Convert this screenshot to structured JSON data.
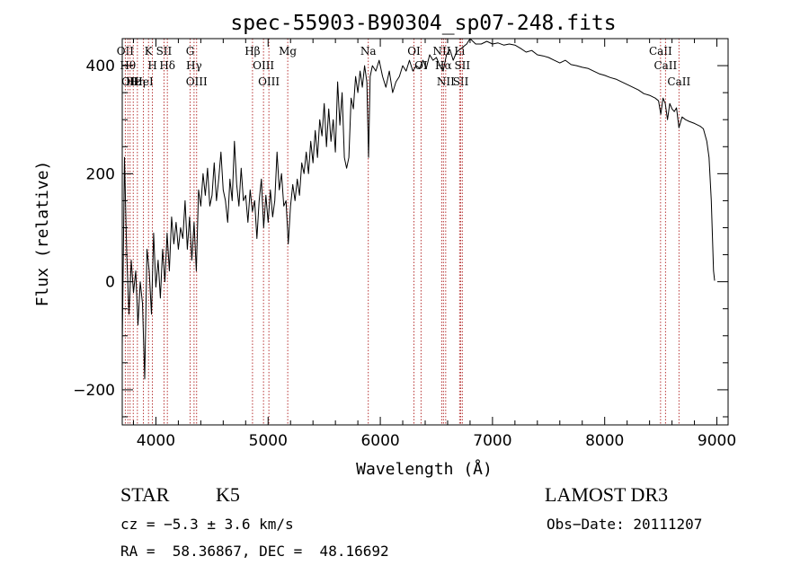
{
  "chart_data": {
    "type": "line",
    "title": "spec-55903-B90304_sp07-248.fits",
    "xlabel": "Wavelength (Å)",
    "ylabel": "Flux (relative)",
    "xlim": [
      3700,
      9100
    ],
    "ylim": [
      -265,
      450
    ],
    "x_ticks": [
      4000,
      5000,
      6000,
      7000,
      8000,
      9000
    ],
    "x_tick_labels": [
      "4000",
      "5000",
      "6000",
      "7000",
      "8000",
      "9000"
    ],
    "y_ticks": [
      -200,
      0,
      200,
      400
    ],
    "y_tick_labels": [
      "−200",
      "0",
      "200",
      "400"
    ],
    "series": [
      {
        "name": "flux",
        "color": "#000000",
        "points": [
          [
            3700,
            -120
          ],
          [
            3720,
            230
          ],
          [
            3740,
            50
          ],
          [
            3760,
            -60
          ],
          [
            3780,
            40
          ],
          [
            3800,
            -20
          ],
          [
            3820,
            20
          ],
          [
            3840,
            -80
          ],
          [
            3860,
            0
          ],
          [
            3880,
            -40
          ],
          [
            3900,
            -180
          ],
          [
            3920,
            60
          ],
          [
            3940,
            20
          ],
          [
            3960,
            -60
          ],
          [
            3980,
            90
          ],
          [
            4000,
            -10
          ],
          [
            4020,
            40
          ],
          [
            4040,
            -30
          ],
          [
            4060,
            60
          ],
          [
            4080,
            0
          ],
          [
            4100,
            90
          ],
          [
            4120,
            20
          ],
          [
            4140,
            120
          ],
          [
            4160,
            70
          ],
          [
            4180,
            110
          ],
          [
            4200,
            60
          ],
          [
            4220,
            100
          ],
          [
            4240,
            80
          ],
          [
            4260,
            150
          ],
          [
            4280,
            60
          ],
          [
            4300,
            120
          ],
          [
            4320,
            40
          ],
          [
            4340,
            110
          ],
          [
            4360,
            20
          ],
          [
            4380,
            170
          ],
          [
            4400,
            140
          ],
          [
            4420,
            200
          ],
          [
            4440,
            160
          ],
          [
            4460,
            210
          ],
          [
            4480,
            140
          ],
          [
            4500,
            160
          ],
          [
            4520,
            220
          ],
          [
            4540,
            150
          ],
          [
            4560,
            190
          ],
          [
            4580,
            240
          ],
          [
            4600,
            170
          ],
          [
            4620,
            150
          ],
          [
            4640,
            110
          ],
          [
            4660,
            190
          ],
          [
            4680,
            150
          ],
          [
            4700,
            260
          ],
          [
            4720,
            180
          ],
          [
            4740,
            140
          ],
          [
            4760,
            210
          ],
          [
            4780,
            150
          ],
          [
            4800,
            160
          ],
          [
            4820,
            110
          ],
          [
            4840,
            170
          ],
          [
            4860,
            130
          ],
          [
            4880,
            150
          ],
          [
            4900,
            80
          ],
          [
            4920,
            150
          ],
          [
            4940,
            190
          ],
          [
            4960,
            100
          ],
          [
            4980,
            160
          ],
          [
            5000,
            110
          ],
          [
            5020,
            170
          ],
          [
            5040,
            120
          ],
          [
            5060,
            150
          ],
          [
            5080,
            240
          ],
          [
            5100,
            170
          ],
          [
            5120,
            200
          ],
          [
            5140,
            140
          ],
          [
            5160,
            150
          ],
          [
            5180,
            70
          ],
          [
            5200,
            140
          ],
          [
            5220,
            180
          ],
          [
            5240,
            150
          ],
          [
            5260,
            190
          ],
          [
            5280,
            160
          ],
          [
            5300,
            220
          ],
          [
            5320,
            200
          ],
          [
            5340,
            240
          ],
          [
            5360,
            200
          ],
          [
            5380,
            260
          ],
          [
            5400,
            220
          ],
          [
            5420,
            280
          ],
          [
            5440,
            230
          ],
          [
            5460,
            300
          ],
          [
            5480,
            270
          ],
          [
            5500,
            330
          ],
          [
            5520,
            250
          ],
          [
            5540,
            320
          ],
          [
            5560,
            260
          ],
          [
            5580,
            300
          ],
          [
            5600,
            240
          ],
          [
            5620,
            370
          ],
          [
            5640,
            290
          ],
          [
            5660,
            350
          ],
          [
            5680,
            230
          ],
          [
            5700,
            210
          ],
          [
            5720,
            230
          ],
          [
            5740,
            340
          ],
          [
            5760,
            320
          ],
          [
            5780,
            380
          ],
          [
            5800,
            350
          ],
          [
            5820,
            390
          ],
          [
            5840,
            360
          ],
          [
            5860,
            400
          ],
          [
            5880,
            370
          ],
          [
            5895,
            230
          ],
          [
            5910,
            380
          ],
          [
            5930,
            400
          ],
          [
            5960,
            390
          ],
          [
            5990,
            410
          ],
          [
            6020,
            380
          ],
          [
            6050,
            360
          ],
          [
            6080,
            390
          ],
          [
            6110,
            350
          ],
          [
            6140,
            370
          ],
          [
            6170,
            380
          ],
          [
            6200,
            400
          ],
          [
            6230,
            390
          ],
          [
            6260,
            410
          ],
          [
            6290,
            390
          ],
          [
            6320,
            400
          ],
          [
            6350,
            395
          ],
          [
            6380,
            410
          ],
          [
            6410,
            395
          ],
          [
            6440,
            420
          ],
          [
            6470,
            410
          ],
          [
            6500,
            415
          ],
          [
            6530,
            400
          ],
          [
            6560,
            390
          ],
          [
            6590,
            420
          ],
          [
            6620,
            430
          ],
          [
            6650,
            410
          ],
          [
            6680,
            425
          ],
          [
            6710,
            430
          ],
          [
            6740,
            435
          ],
          [
            6770,
            440
          ],
          [
            6800,
            450
          ],
          [
            6850,
            440
          ],
          [
            6900,
            440
          ],
          [
            6950,
            445
          ],
          [
            7000,
            440
          ],
          [
            7050,
            442
          ],
          [
            7100,
            438
          ],
          [
            7150,
            440
          ],
          [
            7200,
            438
          ],
          [
            7250,
            432
          ],
          [
            7300,
            425
          ],
          [
            7350,
            428
          ],
          [
            7400,
            420
          ],
          [
            7450,
            418
          ],
          [
            7500,
            415
          ],
          [
            7550,
            410
          ],
          [
            7600,
            405
          ],
          [
            7650,
            410
          ],
          [
            7700,
            402
          ],
          [
            7750,
            400
          ],
          [
            7800,
            397
          ],
          [
            7850,
            395
          ],
          [
            7900,
            390
          ],
          [
            7950,
            385
          ],
          [
            8000,
            382
          ],
          [
            8050,
            378
          ],
          [
            8100,
            375
          ],
          [
            8150,
            370
          ],
          [
            8200,
            365
          ],
          [
            8250,
            360
          ],
          [
            8300,
            355
          ],
          [
            8350,
            348
          ],
          [
            8400,
            345
          ],
          [
            8450,
            340
          ],
          [
            8480,
            335
          ],
          [
            8500,
            310
          ],
          [
            8520,
            340
          ],
          [
            8540,
            330
          ],
          [
            8560,
            300
          ],
          [
            8580,
            330
          ],
          [
            8600,
            320
          ],
          [
            8620,
            315
          ],
          [
            8640,
            322
          ],
          [
            8662,
            285
          ],
          [
            8690,
            305
          ],
          [
            8720,
            300
          ],
          [
            8750,
            297
          ],
          [
            8800,
            293
          ],
          [
            8850,
            288
          ],
          [
            8880,
            283
          ],
          [
            8910,
            260
          ],
          [
            8930,
            230
          ],
          [
            8950,
            150
          ],
          [
            8970,
            20
          ],
          [
            8980,
            2
          ]
        ]
      }
    ],
    "lines": [
      {
        "wl": 3727,
        "labels": [
          "OII"
        ]
      },
      {
        "wl": 3750,
        "labels": [
          "Hθ"
        ]
      },
      {
        "wl": 3770,
        "labels": [
          "OII"
        ]
      },
      {
        "wl": 3798,
        "labels": [
          "Hε"
        ]
      },
      {
        "wl": 3835,
        "labels": [
          "Hη"
        ]
      },
      {
        "wl": 3889,
        "labels": [
          "HeI"
        ]
      },
      {
        "wl": 3934,
        "labels": [
          "K"
        ]
      },
      {
        "wl": 3969,
        "labels": [
          "H"
        ]
      },
      {
        "wl": 4072,
        "labels": [
          "SII"
        ]
      },
      {
        "wl": 4102,
        "labels": [
          "Hδ"
        ]
      },
      {
        "wl": 4305,
        "labels": [
          "G"
        ]
      },
      {
        "wl": 4340,
        "labels": [
          "Hγ"
        ]
      },
      {
        "wl": 4363,
        "labels": [
          "OIII"
        ]
      },
      {
        "wl": 4861,
        "labels": [
          "Hβ"
        ]
      },
      {
        "wl": 4959,
        "labels": [
          "OIII"
        ]
      },
      {
        "wl": 5007,
        "labels": [
          "OIII"
        ]
      },
      {
        "wl": 5175,
        "labels": [
          "Mg"
        ]
      },
      {
        "wl": 5893,
        "labels": [
          "Na"
        ]
      },
      {
        "wl": 6300,
        "labels": [
          "OI"
        ]
      },
      {
        "wl": 6363,
        "labels": [
          "OI"
        ]
      },
      {
        "wl": 6548,
        "labels": [
          "NII"
        ]
      },
      {
        "wl": 6563,
        "labels": [
          "Hα"
        ]
      },
      {
        "wl": 6583,
        "labels": [
          "NII"
        ]
      },
      {
        "wl": 6707,
        "labels": [
          "Li"
        ]
      },
      {
        "wl": 6717,
        "labels": [
          "SII"
        ]
      },
      {
        "wl": 6731,
        "labels": [
          "SII"
        ]
      },
      {
        "wl": 8498,
        "labels": [
          "CaII"
        ]
      },
      {
        "wl": 8542,
        "labels": [
          "CaII"
        ]
      },
      {
        "wl": 8662,
        "labels": [
          "CaII"
        ]
      }
    ]
  },
  "info": {
    "class": "STAR",
    "subclass": "K5",
    "survey": "LAMOST DR3",
    "cz": "cz = −5.3 ± 3.6 km/s",
    "obs_date": "Obs−Date: 20111207",
    "radec": "RA =  58.36867, DEC =  48.16692"
  }
}
